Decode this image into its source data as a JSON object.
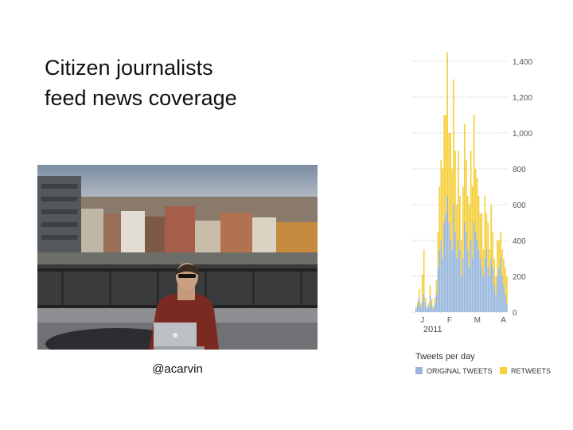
{
  "slide": {
    "title_lines": [
      "Citizen journalists",
      "feed news coverage"
    ],
    "caption": "@acarvin"
  },
  "colors": {
    "original": "#98b6dc",
    "retweets": "#f6cf3b",
    "grid": "#bdbdbd",
    "tick": "#555555"
  },
  "chart_data": {
    "type": "bar",
    "title": "Tweets per day",
    "stacked": true,
    "ylim": [
      0,
      1400
    ],
    "yticks": [
      0,
      200,
      400,
      600,
      800,
      1000,
      1200,
      1400
    ],
    "ytick_labels": [
      "0",
      "200",
      "400",
      "600",
      "800",
      "1,000",
      "1,200",
      "1,400"
    ],
    "month_labels": [
      "J",
      "F",
      "M",
      "A"
    ],
    "year_label": "2011",
    "grid": true,
    "legend_position": "bottom",
    "series": [
      {
        "name": "ORIGINAL TWEETS",
        "values": [
          20,
          40,
          80,
          30,
          60,
          100,
          50,
          20,
          30,
          90,
          40,
          20,
          50,
          100,
          250,
          350,
          400,
          300,
          500,
          550,
          650,
          500,
          400,
          350,
          600,
          450,
          300,
          400,
          350,
          200,
          300,
          500,
          450,
          350,
          250,
          400,
          300,
          500,
          450,
          400,
          350,
          300,
          250,
          200,
          300,
          350,
          250,
          200,
          300,
          250,
          150,
          100,
          200,
          250,
          300,
          200,
          150,
          100,
          50
        ]
      },
      {
        "name": "RETWEETS",
        "values": [
          10,
          20,
          50,
          20,
          150,
          250,
          30,
          10,
          20,
          60,
          30,
          10,
          30,
          80,
          200,
          350,
          450,
          500,
          600,
          550,
          800,
          500,
          600,
          450,
          700,
          450,
          300,
          500,
          300,
          200,
          400,
          550,
          400,
          300,
          350,
          500,
          400,
          600,
          350,
          350,
          300,
          250,
          300,
          150,
          350,
          200,
          250,
          150,
          300,
          200,
          150,
          100,
          200,
          150,
          150,
          150,
          150,
          150,
          150
        ]
      }
    ]
  }
}
